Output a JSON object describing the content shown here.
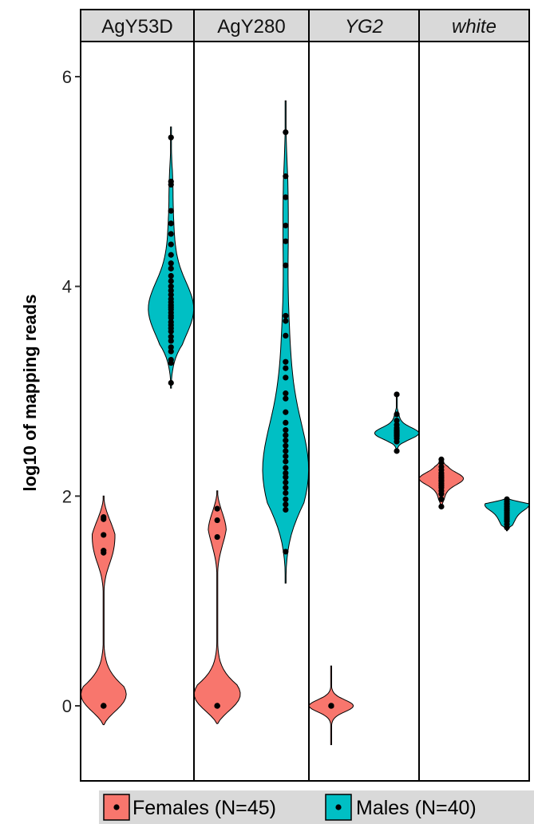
{
  "chart_data": {
    "type": "violin",
    "ylabel": "log10 of mapping reads",
    "ylim": [
      -0.75,
      6.6
    ],
    "yticks": [
      0,
      2,
      4,
      6
    ],
    "facets": [
      {
        "label": "AgY53D",
        "italic": false
      },
      {
        "label": "AgY280",
        "italic": false
      },
      {
        "label": "YG2",
        "italic": true
      },
      {
        "label": "white",
        "italic": true
      }
    ],
    "series": [
      {
        "name": "Females (N=45)",
        "color": "#F8766D"
      },
      {
        "name": "Males (N=40)",
        "color": "#00BFC4"
      }
    ],
    "groups": [
      {
        "facet": "AgY53D",
        "series": "Females (N=45)",
        "ymin": -0.18,
        "ymax": 2.0,
        "bulk": 0.0,
        "points": [
          0.0,
          0.0,
          0.0,
          0.0,
          0.0,
          1.46,
          1.48,
          1.63,
          1.78,
          1.8
        ]
      },
      {
        "facet": "AgY53D",
        "series": "Males (N=40)",
        "ymin": 3.03,
        "ymax": 5.52,
        "bulk": 3.8,
        "points": [
          3.08,
          3.27,
          3.3,
          3.38,
          3.42,
          3.48,
          3.52,
          3.57,
          3.6,
          3.63,
          3.66,
          3.7,
          3.72,
          3.75,
          3.78,
          3.8,
          3.82,
          3.85,
          3.88,
          3.92,
          3.96,
          4.0,
          4.05,
          4.1,
          4.17,
          4.22,
          4.3,
          4.4,
          4.5,
          4.6,
          4.72,
          4.97,
          5.0,
          5.42
        ]
      },
      {
        "facet": "AgY280",
        "series": "Females (N=45)",
        "ymin": -0.17,
        "ymax": 2.05,
        "bulk": 0.0,
        "points": [
          0.0,
          0.0,
          0.0,
          0.0,
          0.0,
          1.61,
          1.77,
          1.88
        ]
      },
      {
        "facet": "AgY280",
        "series": "Males (N=40)",
        "ymin": 1.17,
        "ymax": 5.77,
        "bulk": 2.2,
        "points": [
          1.47,
          1.87,
          1.92,
          1.97,
          2.03,
          2.08,
          2.13,
          2.18,
          2.22,
          2.27,
          2.33,
          2.38,
          2.43,
          2.48,
          2.53,
          2.58,
          2.63,
          2.7,
          2.8,
          2.93,
          2.98,
          3.13,
          3.22,
          3.28,
          3.53,
          3.67,
          3.72,
          4.2,
          4.43,
          4.58,
          4.85,
          5.05,
          5.47
        ]
      },
      {
        "facet": "YG2",
        "series": "Females (N=45)",
        "ymin": -0.37,
        "ymax": 0.38,
        "bulk": 0.0,
        "points": [
          0.0,
          0.0,
          0.0,
          0.0,
          0.0
        ]
      },
      {
        "facet": "YG2",
        "series": "Males (N=40)",
        "ymin": 2.42,
        "ymax": 2.97,
        "bulk": 2.6,
        "points": [
          2.43,
          2.52,
          2.55,
          2.57,
          2.58,
          2.59,
          2.6,
          2.61,
          2.62,
          2.63,
          2.65,
          2.68,
          2.72,
          2.78,
          2.97
        ]
      },
      {
        "facet": "white",
        "series": "Females (N=45)",
        "ymin": 1.89,
        "ymax": 2.36,
        "bulk": 2.17,
        "points": [
          1.9,
          1.97,
          2.02,
          2.05,
          2.08,
          2.1,
          2.12,
          2.14,
          2.15,
          2.17,
          2.18,
          2.2,
          2.22,
          2.25,
          2.28,
          2.32,
          2.35
        ]
      },
      {
        "facet": "white",
        "series": "Males (N=40)",
        "ymin": 1.67,
        "ymax": 1.98,
        "bulk": 1.92,
        "points": [
          1.7,
          1.73,
          1.76,
          1.78,
          1.8,
          1.82,
          1.84,
          1.86,
          1.88,
          1.9,
          1.92,
          1.93,
          1.95,
          1.97
        ]
      }
    ],
    "legend": {
      "position": "bottom"
    },
    "grid": false
  }
}
